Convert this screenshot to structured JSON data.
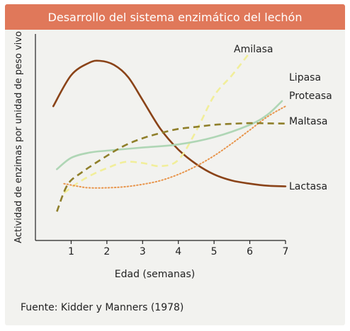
{
  "chart_data": {
    "type": "line",
    "title": "Desarrollo del sistema enzimático del lechón",
    "xlabel": "Edad (semanas)",
    "ylabel": "Actividad de enzimas por unidad de peso vivo",
    "xlim": [
      0,
      7
    ],
    "x_ticks": [
      "1",
      "2",
      "3",
      "4",
      "5",
      "6",
      "7"
    ],
    "y_ticks": [],
    "grid": false,
    "legend": "direct labels at right end of lines",
    "series": [
      {
        "name": "Lactasa",
        "color": "#8a4318",
        "style": "solid",
        "points": [
          [
            0.5,
            6.5
          ],
          [
            1.0,
            8.0
          ],
          [
            1.5,
            8.6
          ],
          [
            1.8,
            8.7
          ],
          [
            2.2,
            8.5
          ],
          [
            2.6,
            7.9
          ],
          [
            3.0,
            6.8
          ],
          [
            3.5,
            5.4
          ],
          [
            4.0,
            4.4
          ],
          [
            4.5,
            3.7
          ],
          [
            5.0,
            3.2
          ],
          [
            5.5,
            2.9
          ],
          [
            6.0,
            2.75
          ],
          [
            6.5,
            2.65
          ],
          [
            7.0,
            2.62
          ]
        ]
      },
      {
        "name": "Amilasa",
        "color": "#f1ee9a",
        "style": "dashed",
        "points": [
          [
            0.8,
            2.3
          ],
          [
            1.2,
            2.8
          ],
          [
            1.6,
            3.2
          ],
          [
            2.0,
            3.5
          ],
          [
            2.5,
            3.8
          ],
          [
            3.0,
            3.75
          ],
          [
            3.5,
            3.6
          ],
          [
            4.0,
            3.9
          ],
          [
            4.5,
            5.3
          ],
          [
            5.0,
            7.0
          ],
          [
            5.5,
            8.0
          ],
          [
            6.0,
            9.1
          ]
        ]
      },
      {
        "name": "Lipasa",
        "color": "#afd6b5",
        "style": "solid",
        "points": [
          [
            0.6,
            3.45
          ],
          [
            1.0,
            4.0
          ],
          [
            1.5,
            4.25
          ],
          [
            2.0,
            4.35
          ],
          [
            3.0,
            4.5
          ],
          [
            4.0,
            4.65
          ],
          [
            5.0,
            5.0
          ],
          [
            6.0,
            5.6
          ],
          [
            6.5,
            6.1
          ],
          [
            6.9,
            6.75
          ]
        ]
      },
      {
        "name": "Proteasa",
        "color": "#e8954c",
        "style": "dotted",
        "points": [
          [
            0.8,
            2.75
          ],
          [
            1.2,
            2.62
          ],
          [
            1.5,
            2.55
          ],
          [
            2.0,
            2.55
          ],
          [
            2.5,
            2.6
          ],
          [
            3.0,
            2.72
          ],
          [
            3.5,
            2.9
          ],
          [
            4.0,
            3.2
          ],
          [
            4.5,
            3.6
          ],
          [
            5.0,
            4.1
          ],
          [
            5.5,
            4.7
          ],
          [
            6.0,
            5.35
          ],
          [
            6.5,
            6.0
          ],
          [
            7.0,
            6.5
          ]
        ]
      },
      {
        "name": "Maltasa",
        "color": "#8f7f2a",
        "style": "dashed",
        "points": [
          [
            0.6,
            1.4
          ],
          [
            0.9,
            2.7
          ],
          [
            1.3,
            3.3
          ],
          [
            2.0,
            4.1
          ],
          [
            2.5,
            4.6
          ],
          [
            3.0,
            4.95
          ],
          [
            3.5,
            5.2
          ],
          [
            4.0,
            5.4
          ],
          [
            4.5,
            5.5
          ],
          [
            5.0,
            5.6
          ],
          [
            5.5,
            5.65
          ],
          [
            6.0,
            5.68
          ],
          [
            6.5,
            5.67
          ],
          [
            7.0,
            5.66
          ]
        ]
      }
    ]
  },
  "source": "Fuente: Kidder y Manners (1978)"
}
